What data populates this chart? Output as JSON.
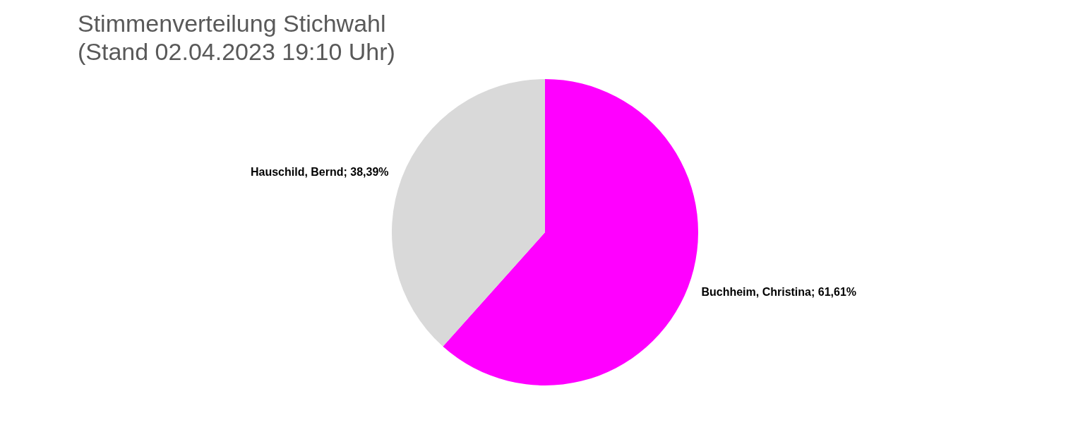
{
  "chart_data": {
    "type": "pie",
    "title": [
      "Stimmenverteilung Stichwahl",
      "(Stand 02.04.2023 19:10 Uhr)"
    ],
    "categories": [
      "Buchheim, Christina",
      "Hauschild, Bernd"
    ],
    "values": [
      61.61,
      38.39
    ],
    "colors": [
      "#ff00ff",
      "#d9d9d9"
    ],
    "value_labels": [
      "61,61%",
      "38,39%"
    ],
    "legend": false
  }
}
